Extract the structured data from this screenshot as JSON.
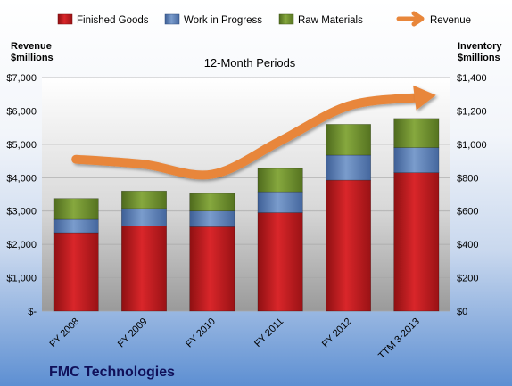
{
  "chart_data": {
    "type": "bar",
    "stacked": true,
    "title": "FMC Technologies",
    "subtitle": "12-Month Periods",
    "categories": [
      "FY 2008",
      "FY 2009",
      "FY 2010",
      "FY 2011",
      "FY 2012",
      "TTM 3-2013"
    ],
    "series": [
      {
        "name": "Finished Goods",
        "axis": "right",
        "color": "#c8191c",
        "values": [
          470,
          510,
          505,
          590,
          785,
          830
        ]
      },
      {
        "name": "Work in Progress",
        "axis": "right",
        "color": "#5b7fb7",
        "values": [
          80,
          105,
          95,
          125,
          150,
          150
        ]
      },
      {
        "name": "Raw Materials",
        "axis": "right",
        "color": "#6e8f2e",
        "values": [
          125,
          105,
          105,
          140,
          185,
          175
        ]
      },
      {
        "name": "Revenue",
        "type": "line",
        "axis": "left",
        "color": "#e8863a",
        "values": [
          4550,
          4400,
          4100,
          5100,
          6150,
          6400
        ]
      }
    ],
    "y_left": {
      "label_lines": [
        "Revenue",
        "$millions"
      ],
      "range": [
        0,
        7000
      ],
      "ticks": [
        0,
        1000,
        2000,
        3000,
        4000,
        5000,
        6000,
        7000
      ],
      "tick_labels": [
        "$-",
        "$1,000",
        "$2,000",
        "$3,000",
        "$4,000",
        "$5,000",
        "$6,000",
        "$7,000"
      ]
    },
    "y_right": {
      "label_lines": [
        "Inventory",
        "$millions"
      ],
      "range": [
        0,
        1400
      ],
      "ticks": [
        0,
        200,
        400,
        600,
        800,
        1000,
        1200,
        1400
      ],
      "tick_labels": [
        "$0",
        "$200",
        "$400",
        "$600",
        "$800",
        "$1,000",
        "$1,200",
        "$1,400"
      ]
    },
    "grid": true,
    "legend_position": "top"
  }
}
